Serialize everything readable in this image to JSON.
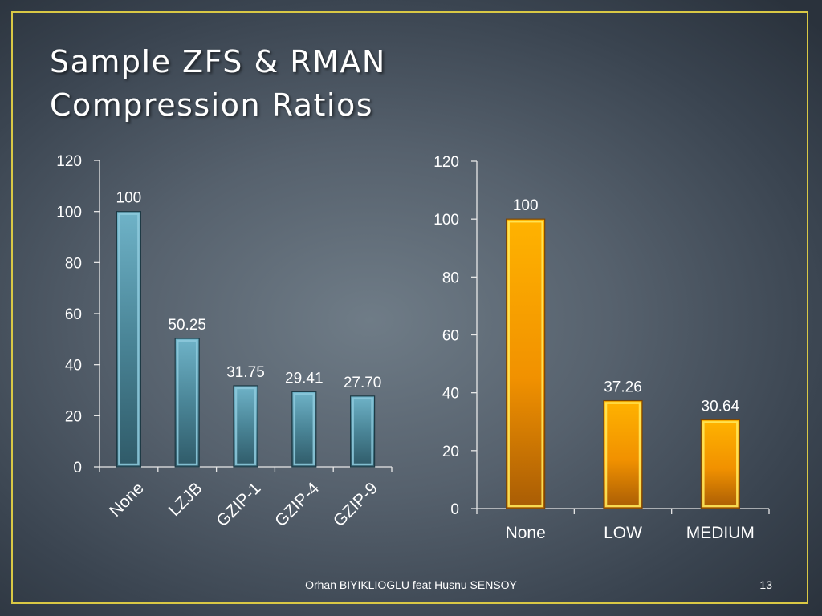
{
  "slide": {
    "title_line1": "Sample ZFS & RMAN",
    "title_line2": "Compression Ratios",
    "footer": "Orhan BIYIKLIOGLU feat Husnu SENSOY",
    "page_number": "13"
  },
  "colors": {
    "frame": "#d9c845",
    "zfs_bar_top": "#2f5a68",
    "zfs_bar_light": "#6fb3c8",
    "rman_bar_top": "#ffb300",
    "rman_bar_light": "#ffe85a"
  },
  "chart_data": [
    {
      "type": "bar",
      "categories": [
        "None",
        "LZJB",
        "GZIP-1",
        "GZIP-4",
        "GZIP-9"
      ],
      "values": [
        100,
        50.25,
        31.75,
        29.41,
        27.7
      ],
      "data_labels": [
        "100",
        "50.25",
        "31.75",
        "29.41",
        "27.70"
      ],
      "title": "",
      "xlabel": "",
      "ylabel": "",
      "ylim": [
        0,
        120
      ],
      "yticks": [
        0,
        20,
        40,
        60,
        80,
        100,
        120
      ],
      "category_label_rotation": -45,
      "grid": false,
      "legend": false
    },
    {
      "type": "bar",
      "categories": [
        "None",
        "LOW",
        "MEDIUM"
      ],
      "values": [
        100,
        37.26,
        30.64
      ],
      "data_labels": [
        "100",
        "37.26",
        "30.64"
      ],
      "title": "",
      "xlabel": "",
      "ylabel": "",
      "ylim": [
        0,
        120
      ],
      "yticks": [
        0,
        20,
        40,
        60,
        80,
        100,
        120
      ],
      "category_label_rotation": 0,
      "grid": false,
      "legend": false
    }
  ]
}
